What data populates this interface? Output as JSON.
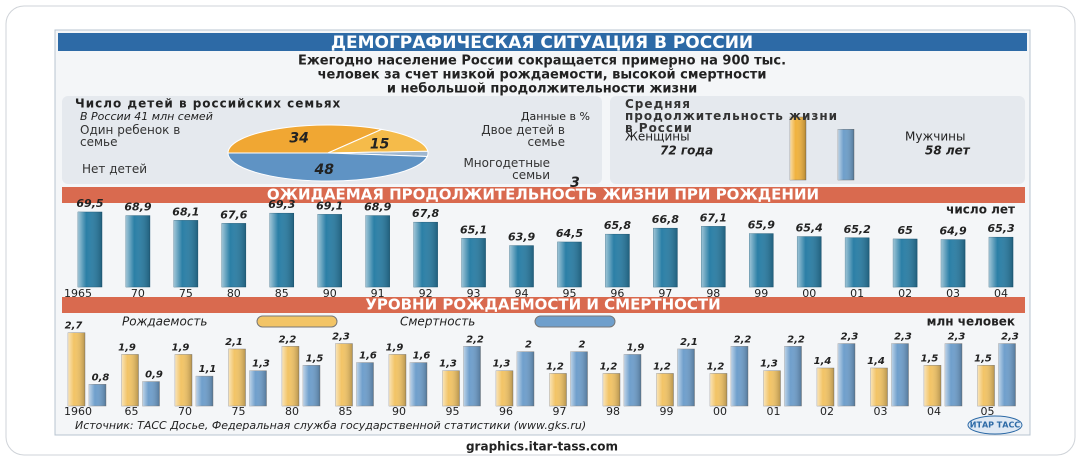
{
  "title": "ДЕМОГРАФИЧЕСКАЯ СИТУАЦИЯ В РОССИИ",
  "subtitle": [
    "Ежегодно население России сокращается примерно на 900 тыс.",
    "человек за счет низкой рождаемости, высокой смертности",
    "и небольшой продолжительности жизни"
  ],
  "chart_data": [
    {
      "type": "pie",
      "title": "Число детей в российских семьях",
      "subtitle": "В России 41 млн семей",
      "note": "Данные в %",
      "categories": [
        "Один ребенок в семье",
        "Двое детей в семье",
        "Многодетные семьи",
        "Нет детей"
      ],
      "values": [
        34,
        15,
        3,
        48
      ],
      "colors": [
        "#f0a733",
        "#f5bb4a",
        "#9fb7cf",
        "#5f93c4"
      ]
    },
    {
      "type": "bar",
      "title": "Средняя продолжительность жизни в России",
      "categories": [
        "Женщины",
        "Мужчины"
      ],
      "values": [
        72,
        58
      ],
      "value_labels": [
        "72 года",
        "58 лет"
      ],
      "colors": [
        "#f0b23e",
        "#6e9fca"
      ],
      "ylim": [
        0,
        80
      ]
    },
    {
      "type": "bar",
      "title": "ОЖИДАЕМАЯ ПРОДОЛЖИТЕЛЬНОСТЬ ЖИЗНИ ПРИ РОЖДЕНИИ",
      "unit_label": "число лет",
      "categories": [
        "1965",
        "70",
        "75",
        "80",
        "85",
        "90",
        "91",
        "92",
        "93",
        "94",
        "95",
        "96",
        "97",
        "98",
        "99",
        "00",
        "01",
        "02",
        "03",
        "04"
      ],
      "values": [
        69.5,
        68.9,
        68.1,
        67.6,
        69.3,
        69.1,
        68.9,
        67.8,
        65.1,
        63.9,
        64.5,
        65.8,
        66.8,
        67.1,
        65.9,
        65.4,
        65.2,
        65,
        64.9,
        65.3
      ],
      "value_labels": [
        "69,5",
        "68,9",
        "68,1",
        "67,6",
        "69,3",
        "69,1",
        "68,9",
        "67,8",
        "65,1",
        "63,9",
        "64,5",
        "65,8",
        "66,8",
        "67,1",
        "65,9",
        "65,4",
        "65,2",
        "65",
        "64,9",
        "65,3"
      ],
      "color": "#2b7fa6",
      "ylim": [
        57,
        70
      ]
    },
    {
      "type": "bar",
      "title": "УРОВНИ РОЖДАЕМОСТИ И СМЕРТНОСТИ",
      "unit_label": "млн человек",
      "categories": [
        "1960",
        "65",
        "70",
        "75",
        "80",
        "85",
        "90",
        "95",
        "96",
        "97",
        "98",
        "99",
        "00",
        "01",
        "02",
        "03",
        "04",
        "05"
      ],
      "series": [
        {
          "name": "Рождаемость",
          "color": "#f2c466",
          "values": [
            2.7,
            1.9,
            1.9,
            2.1,
            2.2,
            2.3,
            1.9,
            1.3,
            1.3,
            1.2,
            1.2,
            1.2,
            1.2,
            1.3,
            1.4,
            1.4,
            1.5,
            1.5
          ],
          "value_labels": [
            "2,7",
            "1,9",
            "1,9",
            "2,1",
            "2,2",
            "2,3",
            "1,9",
            "1,3",
            "1,3",
            "1,2",
            "1,2",
            "1,2",
            "1,2",
            "1,3",
            "1,4",
            "1,4",
            "1,5",
            "1,5"
          ]
        },
        {
          "name": "Смертность",
          "color": "#6f9fcc",
          "values": [
            0.8,
            0.9,
            1.1,
            1.3,
            1.5,
            1.6,
            1.6,
            2.2,
            2,
            2,
            1.9,
            2.1,
            2.2,
            2.2,
            2.3,
            2.3,
            2.3,
            2.3
          ],
          "value_labels": [
            "0,8",
            "0,9",
            "1,1",
            "1,3",
            "1,5",
            "1,6",
            "1,6",
            "2,2",
            "2",
            "2",
            "1,9",
            "2,1",
            "2,2",
            "2,2",
            "2,3",
            "2,3",
            "2,3",
            "2,3"
          ]
        }
      ],
      "ylim": [
        0,
        2.8
      ]
    }
  ],
  "source": "Источник: ТАСС Досье, Федеральная служба государственной статистики (www.gks.ru)",
  "logo": "ИТАР ТАСС",
  "footer": "graphics.itar-tass.com"
}
